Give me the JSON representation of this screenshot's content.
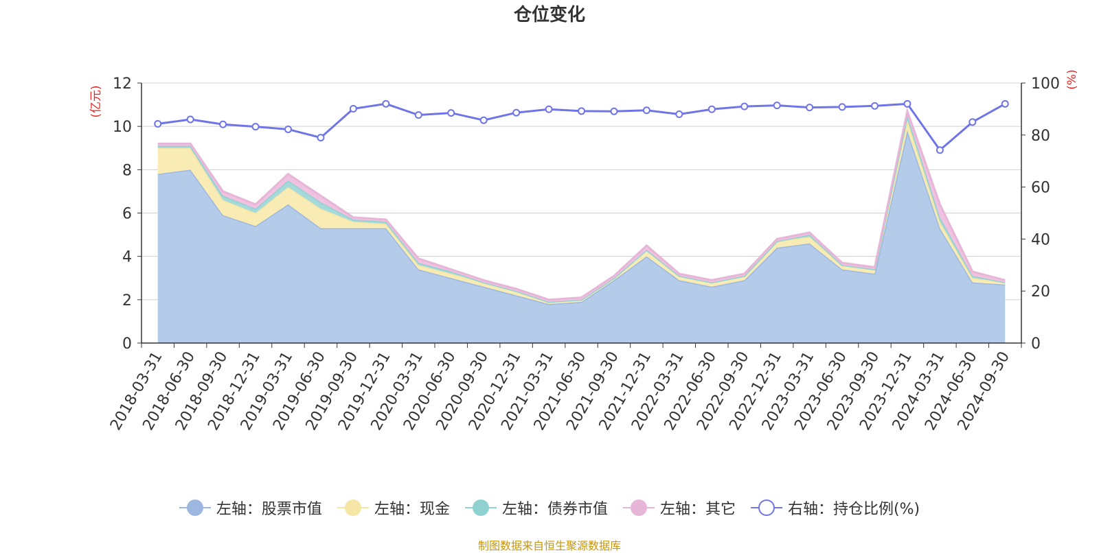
{
  "title": "仓位变化",
  "footer": "制图数据来自恒生聚源数据库",
  "chart_data": {
    "type": "area",
    "title": "仓位变化",
    "categories": [
      "2018-03-31",
      "2018-06-30",
      "2018-09-30",
      "2018-12-31",
      "2019-03-31",
      "2019-06-30",
      "2019-09-30",
      "2019-12-31",
      "2020-03-31",
      "2020-06-30",
      "2020-09-30",
      "2020-12-31",
      "2021-03-31",
      "2021-06-30",
      "2021-09-30",
      "2021-12-31",
      "2022-03-31",
      "2022-06-30",
      "2022-09-30",
      "2022-12-31",
      "2023-03-31",
      "2023-06-30",
      "2023-09-30",
      "2023-12-31",
      "2024-03-31",
      "2024-06-30",
      "2024-09-30"
    ],
    "left_axis": {
      "label": "(亿元)",
      "min": 0,
      "max": 12,
      "ticks": [
        "0",
        "2",
        "4",
        "6",
        "8",
        "10",
        "12"
      ]
    },
    "right_axis": {
      "label": "(%)",
      "min": 0,
      "max": 100,
      "ticks": [
        "0",
        "20",
        "40",
        "60",
        "80",
        "100"
      ]
    },
    "stacked": true,
    "grid": true,
    "legend_position": "bottom",
    "series": [
      {
        "name": "左轴：股票市值",
        "axis": "left",
        "color": "#9db8e0",
        "fill": "#b5cbea",
        "values": [
          7.8,
          8.0,
          5.9,
          5.4,
          6.4,
          5.3,
          5.3,
          5.3,
          3.4,
          3.0,
          2.6,
          2.2,
          1.8,
          1.9,
          2.9,
          4.0,
          2.9,
          2.6,
          2.9,
          4.4,
          4.6,
          3.4,
          3.2,
          9.8,
          5.3,
          2.8,
          2.7
        ]
      },
      {
        "name": "左轴：现金",
        "axis": "left",
        "color": "#f5e6a6",
        "fill": "#f8ebb3",
        "values": [
          1.2,
          1.0,
          0.7,
          0.6,
          0.8,
          0.9,
          0.3,
          0.2,
          0.2,
          0.2,
          0.2,
          0.2,
          0.1,
          0.1,
          0.1,
          0.3,
          0.2,
          0.2,
          0.2,
          0.3,
          0.3,
          0.2,
          0.2,
          0.5,
          0.3,
          0.2,
          0.1
        ]
      },
      {
        "name": "左轴：债券市值",
        "axis": "left",
        "color": "#8fd1d1",
        "fill": "#a6dada",
        "values": [
          0.1,
          0.1,
          0.2,
          0.2,
          0.3,
          0.3,
          0.1,
          0.1,
          0.1,
          0.1,
          0.0,
          0.0,
          0.0,
          0.0,
          0.0,
          0.0,
          0.0,
          0.0,
          0.0,
          0.0,
          0.1,
          0.0,
          0.0,
          0.2,
          0.2,
          0.1,
          0.0
        ]
      },
      {
        "name": "左轴：其它",
        "axis": "left",
        "color": "#e6b5d8",
        "fill": "#efc2e0",
        "values": [
          0.1,
          0.1,
          0.2,
          0.2,
          0.3,
          0.3,
          0.1,
          0.1,
          0.2,
          0.1,
          0.1,
          0.1,
          0.1,
          0.1,
          0.1,
          0.2,
          0.1,
          0.1,
          0.1,
          0.1,
          0.1,
          0.1,
          0.1,
          0.2,
          0.6,
          0.2,
          0.1
        ]
      },
      {
        "name": "右轴：持仓比例(%)",
        "axis": "right",
        "type": "line",
        "color": "#6f74e8",
        "values": [
          84.3,
          86.0,
          84.1,
          83.2,
          82.2,
          79.0,
          90.1,
          92.0,
          87.7,
          88.5,
          85.7,
          88.6,
          89.9,
          89.2,
          89.1,
          89.5,
          88.0,
          89.9,
          91.0,
          91.4,
          90.6,
          90.8,
          91.2,
          92.0,
          74.2,
          85.0,
          92.0
        ]
      }
    ]
  }
}
